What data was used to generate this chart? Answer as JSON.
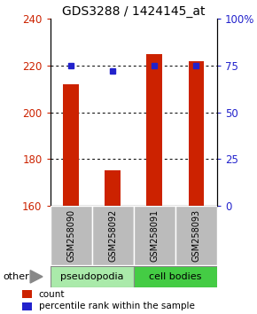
{
  "title": "GDS3288 / 1424145_at",
  "samples": [
    "GSM258090",
    "GSM258092",
    "GSM258091",
    "GSM258093"
  ],
  "counts": [
    212,
    175,
    225,
    222
  ],
  "percentile_ranks": [
    75,
    72,
    75,
    75
  ],
  "ylim_left": [
    160,
    240
  ],
  "ylim_right": [
    0,
    100
  ],
  "yticks_left": [
    160,
    180,
    200,
    220,
    240
  ],
  "yticks_right": [
    0,
    25,
    50,
    75,
    100
  ],
  "ytick_labels_right": [
    "0",
    "25",
    "50",
    "75",
    "100%"
  ],
  "bar_color": "#cc2200",
  "dot_color": "#2222cc",
  "groups": [
    {
      "label": "pseudopodia",
      "color": "#aaeaaa"
    },
    {
      "label": "cell bodies",
      "color": "#44cc44"
    }
  ],
  "other_label": "other",
  "legend_count_label": "count",
  "legend_pct_label": "percentile rank within the sample",
  "tick_area_color": "#bbbbbb",
  "title_fontsize": 10,
  "tick_fontsize": 8.5,
  "sample_fontsize": 7,
  "group_fontsize": 8,
  "legend_fontsize": 7.5
}
